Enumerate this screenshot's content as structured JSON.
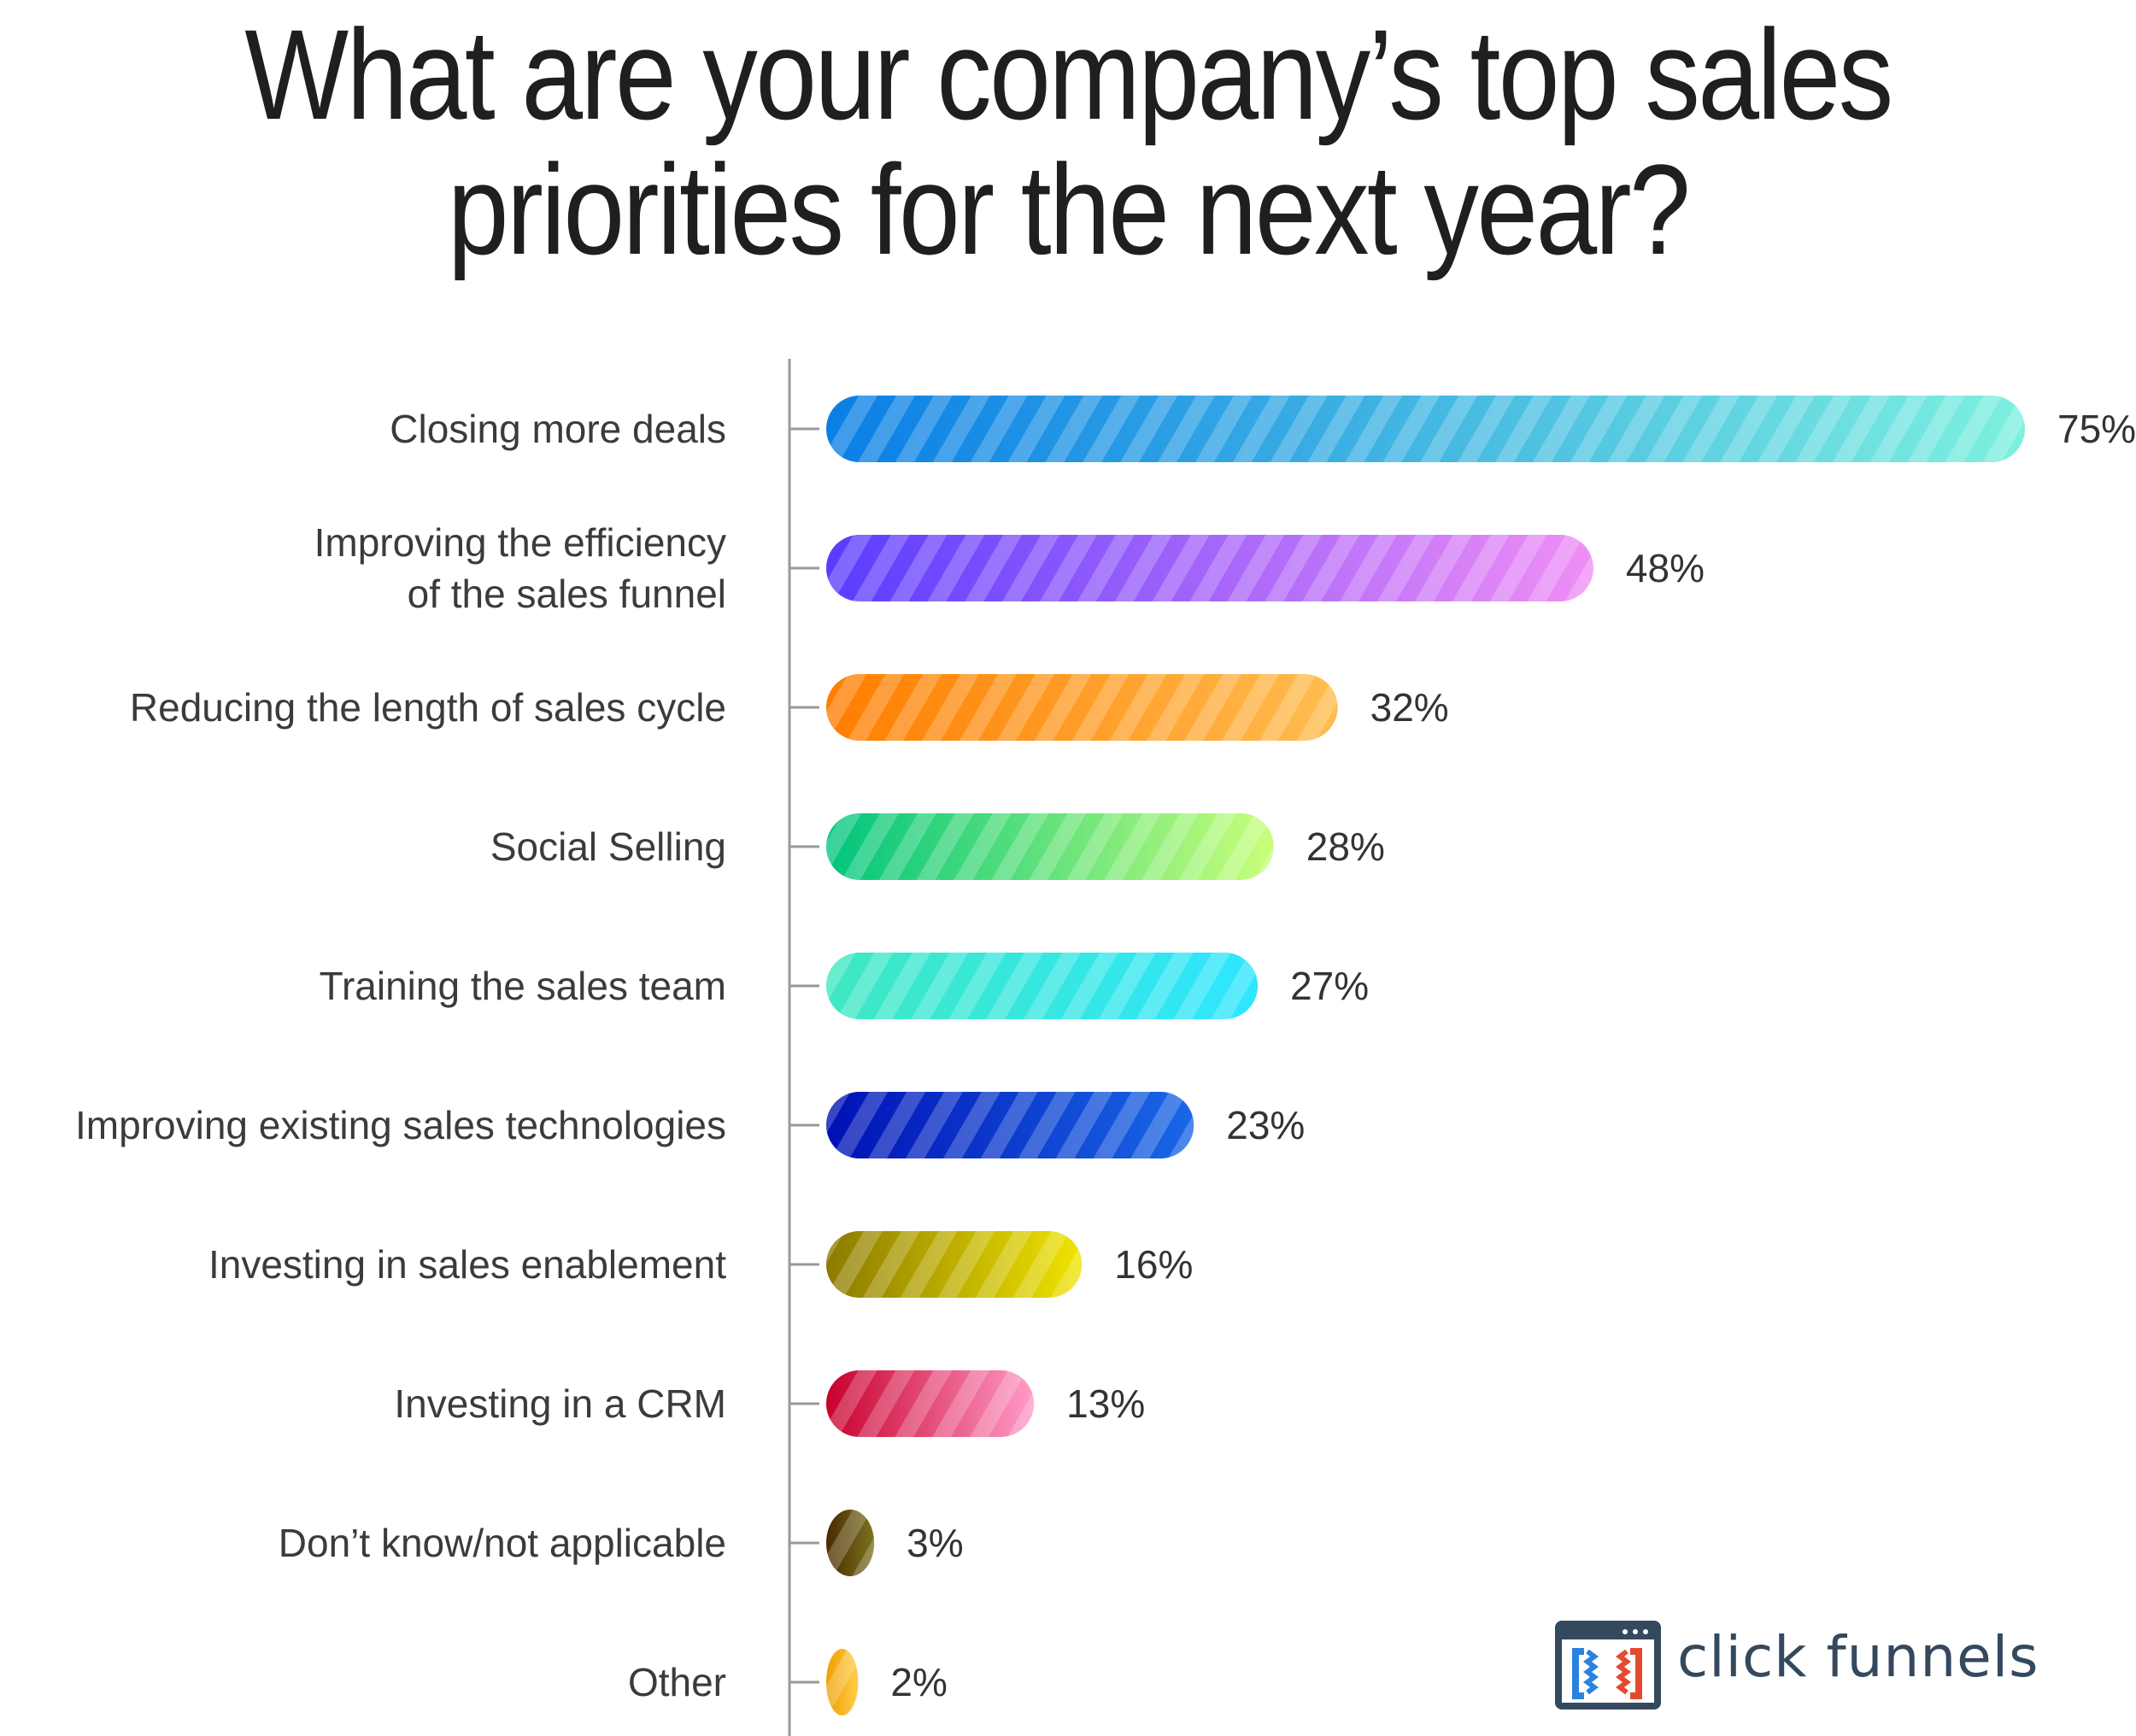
{
  "chart_data": {
    "type": "bar",
    "orientation": "horizontal",
    "title": "What are your company’s top sales priorities for the next year?",
    "title_lines": [
      "What are your company’s top sales",
      "priorities for the next year?"
    ],
    "xlim": [
      0,
      75
    ],
    "grid": false,
    "value_suffix": "%",
    "categories": [
      [
        "Closing more deals"
      ],
      [
        "Improving the efficiency",
        "of the sales funnel"
      ],
      [
        "Reducing the length of sales cycle"
      ],
      [
        "Social Selling"
      ],
      [
        "Training the sales team"
      ],
      [
        "Improving existing sales technologies"
      ],
      [
        "Investing in sales enablement"
      ],
      [
        "Investing in a CRM"
      ],
      [
        "Don’t know/not applicable"
      ],
      [
        "Other"
      ]
    ],
    "values": [
      75,
      48,
      32,
      28,
      27,
      23,
      16,
      13,
      3,
      2
    ],
    "value_labels": [
      "75%",
      "48%",
      "32%",
      "28%",
      "27%",
      "23%",
      "16%",
      "13%",
      "3%",
      "2%"
    ],
    "bar_gradients": [
      [
        "#0a7ee6",
        "#7ef0df"
      ],
      [
        "#5a3cff",
        "#f08ff5"
      ],
      [
        "#ff7d00",
        "#ffbd50"
      ],
      [
        "#00c57d",
        "#c9ff7a"
      ],
      [
        "#3ee8c2",
        "#2ee6ff"
      ],
      [
        "#0010b5",
        "#1968e6"
      ],
      [
        "#8c7a00",
        "#f0e400"
      ],
      [
        "#c8002c",
        "#ff9cc8"
      ],
      [
        "#4a2a00",
        "#7c7320"
      ],
      [
        "#eea000",
        "#ffcd4a"
      ]
    ]
  },
  "brand": {
    "name": "click funnels",
    "icon": "clickfunnels-logo-icon",
    "colors": {
      "text": "#34495e",
      "frame": "#34495e",
      "blue": "#2b83e0",
      "red": "#e44a2f"
    }
  },
  "axis_color": "#999999"
}
